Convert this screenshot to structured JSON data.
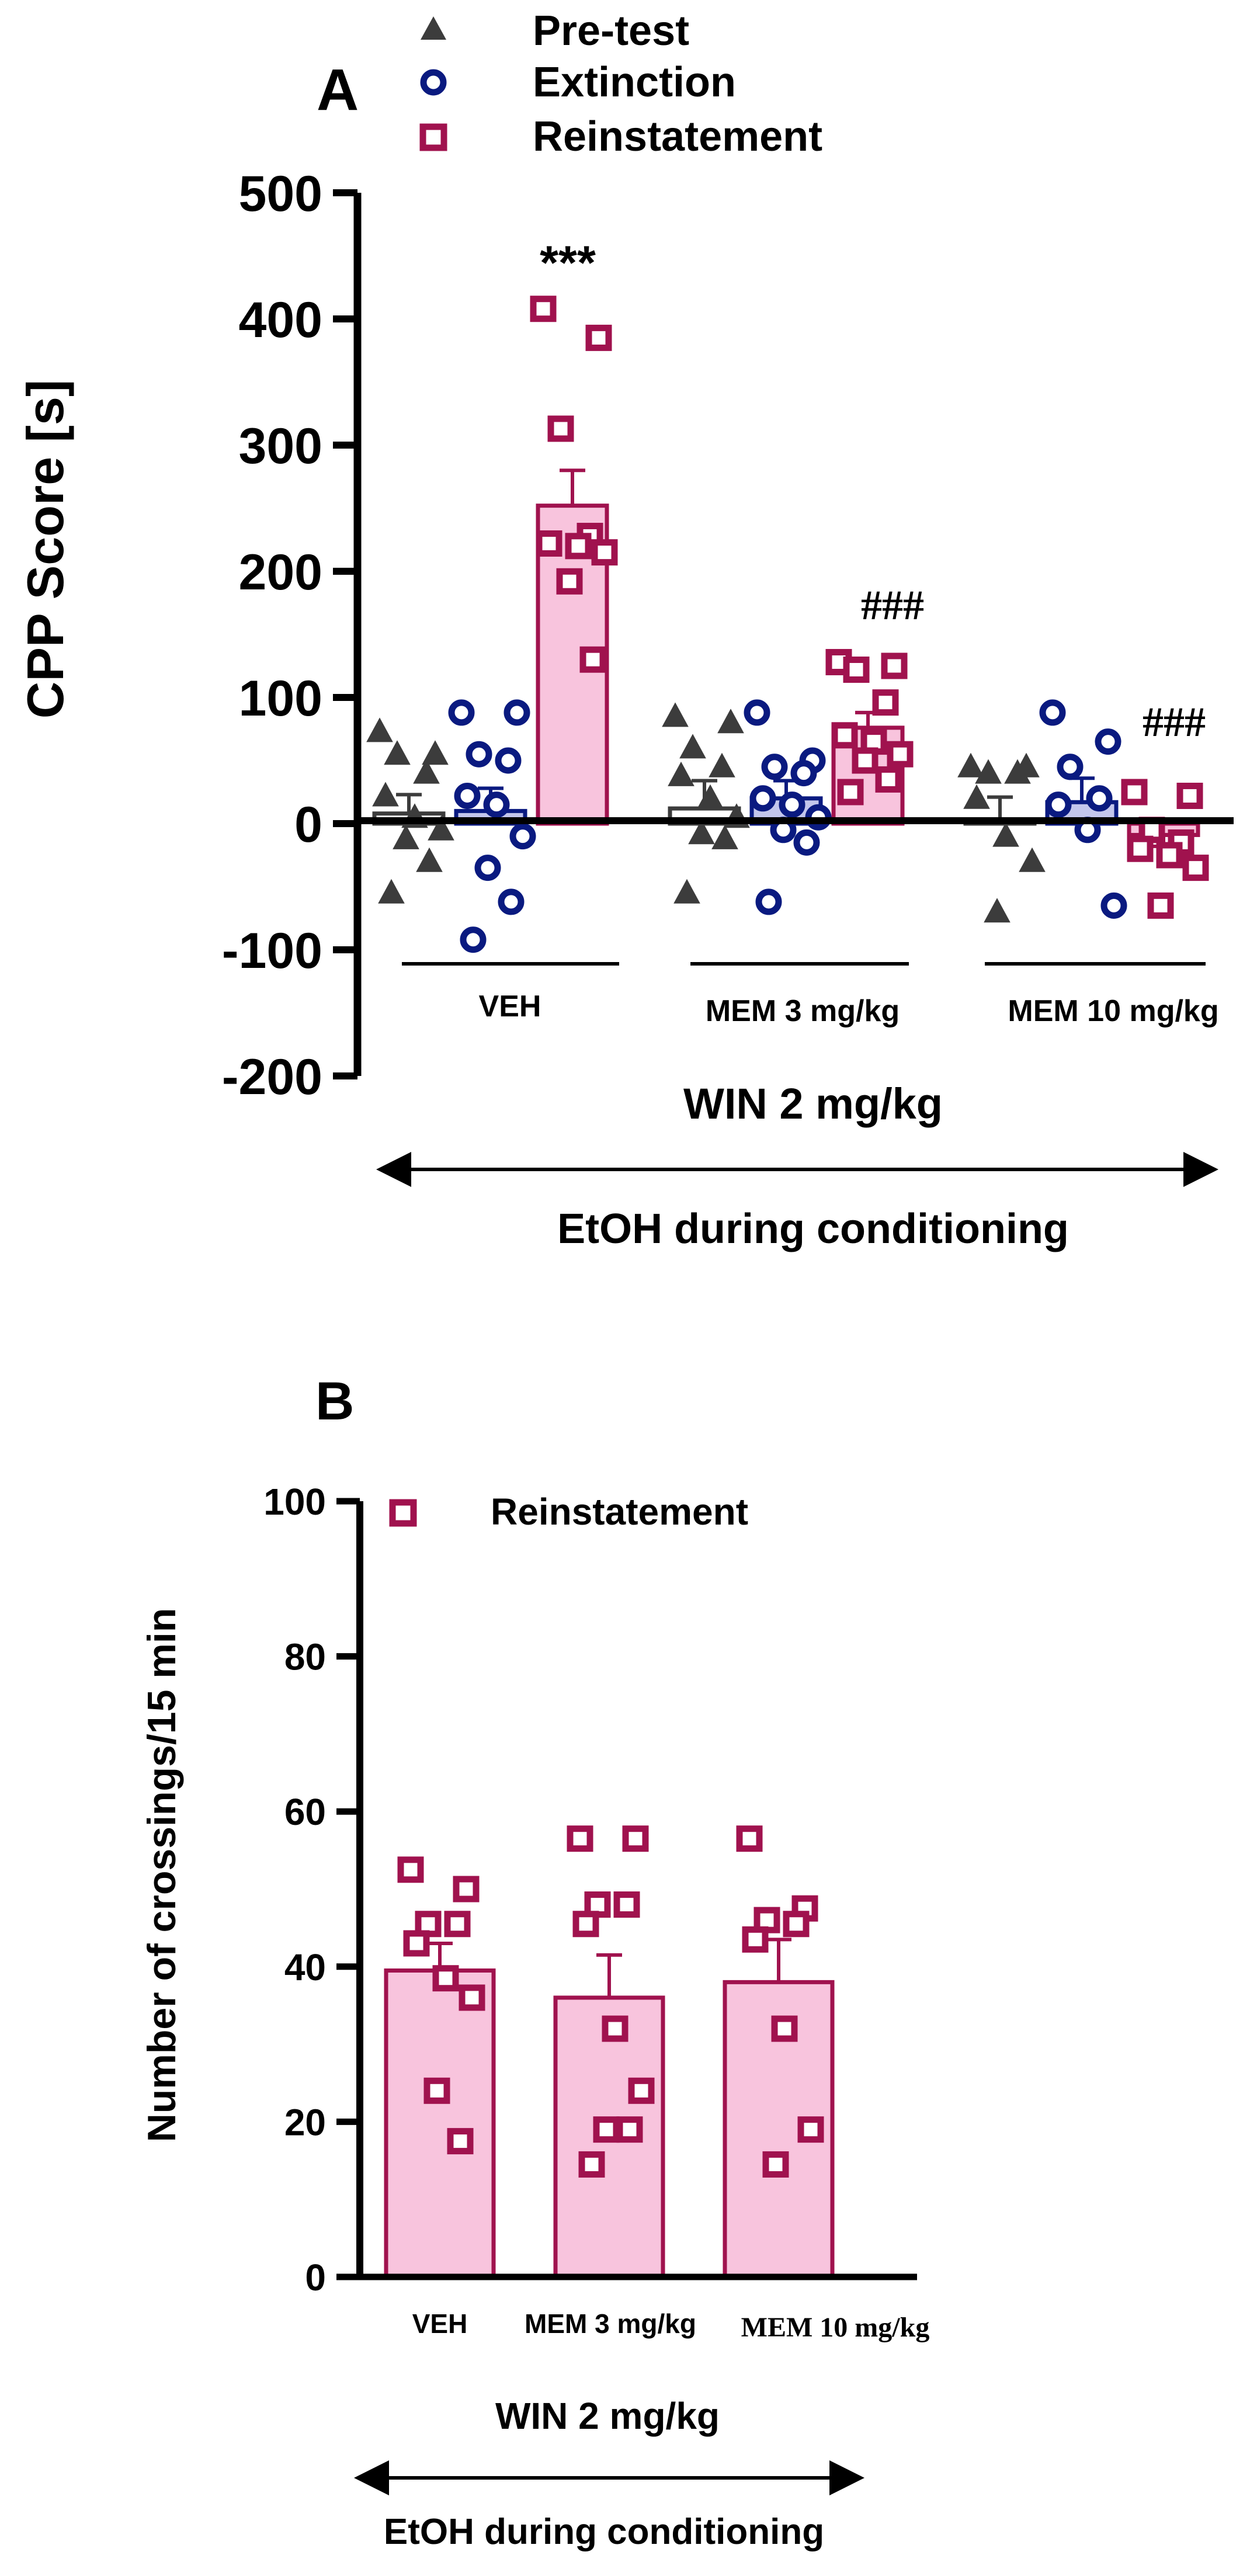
{
  "colors": {
    "pretest": "#3c3c3c",
    "extinction": "#0a1a80",
    "reinstatement": "#a0124e",
    "reinstatement_fill": "#f8c4dd",
    "extinction_fill": "#c3c6ec",
    "pretest_fill": "#ffffff"
  },
  "chart_data": [
    {
      "type": "bar",
      "panel_label": "A",
      "ylabel": "CPP Score [s]",
      "ylim": [
        -200,
        500
      ],
      "yticks": [
        "500",
        "400",
        "300",
        "200",
        "100",
        "0",
        "-100",
        "-200"
      ],
      "legend": [
        "Pre-test",
        "Extinction",
        "Reinstatement"
      ],
      "categories": [
        "VEH",
        "MEM 3 mg/kg",
        "MEM 10 mg/kg"
      ],
      "group_label": "WIN 2 mg/kg",
      "arrow_label": "EtOH during conditioning",
      "annotations": [
        "***",
        "###",
        "###"
      ],
      "series": [
        {
          "name": "Pre-test",
          "marker": "triangle",
          "values": [
            8,
            12,
            3
          ],
          "sem": [
            15,
            22,
            18
          ],
          "points": [
            [
              73,
              55,
              55,
              40,
              22,
              5,
              -5,
              -12,
              -30,
              -55
            ],
            [
              85,
              80,
              60,
              45,
              38,
              20,
              5,
              -8,
              -12,
              -55
            ],
            [
              45,
              45,
              40,
              40,
              20,
              -10,
              -30,
              -70
            ]
          ]
        },
        {
          "name": "Extinction",
          "marker": "circle",
          "values": [
            10,
            20,
            17
          ],
          "sem": [
            18,
            14,
            19
          ],
          "points": [
            [
              88,
              88,
              55,
              50,
              22,
              15,
              -10,
              -35,
              -62,
              -92
            ],
            [
              88,
              50,
              45,
              40,
              20,
              15,
              5,
              -5,
              -15,
              -62
            ],
            [
              88,
              65,
              45,
              20,
              15,
              -5,
              -65
            ]
          ]
        },
        {
          "name": "Reinstatement",
          "marker": "square",
          "values": [
            252,
            76,
            -9
          ],
          "sem": [
            28,
            12,
            9
          ],
          "points": [
            [
              408,
              385,
              313,
              228,
              222,
              220,
              215,
              192,
              130
            ],
            [
              128,
              125,
              122,
              96,
              70,
              65,
              55,
              50,
              35,
              25
            ],
            [
              25,
              22,
              -5,
              -15,
              -20,
              -25,
              -35,
              -65
            ]
          ]
        }
      ]
    },
    {
      "type": "bar",
      "panel_label": "B",
      "ylabel": "Number of crossings/15 min",
      "ylim": [
        0,
        100
      ],
      "yticks": [
        "100",
        "80",
        "60",
        "40",
        "20",
        "0"
      ],
      "legend": [
        "Reinstatement"
      ],
      "categories": [
        "VEH",
        "MEM 3 mg/kg",
        "MEM 10 mg/kg"
      ],
      "group_label": "WIN 2 mg/kg",
      "arrow_label": "EtOH during conditioning",
      "series": [
        {
          "name": "Reinstatement",
          "marker": "square",
          "values": [
            39.5,
            36,
            38
          ],
          "sem": [
            3.5,
            5.5,
            5.5
          ],
          "points": [
            [
              52.5,
              50,
              45.5,
              45.5,
              43,
              38.5,
              36,
              24,
              17.5
            ],
            [
              56.5,
              56.5,
              48,
              48,
              45.5,
              32,
              24,
              19,
              19,
              14.5
            ],
            [
              56.5,
              47.5,
              46,
              45.5,
              43.5,
              32,
              19,
              14.5
            ]
          ]
        }
      ]
    }
  ]
}
